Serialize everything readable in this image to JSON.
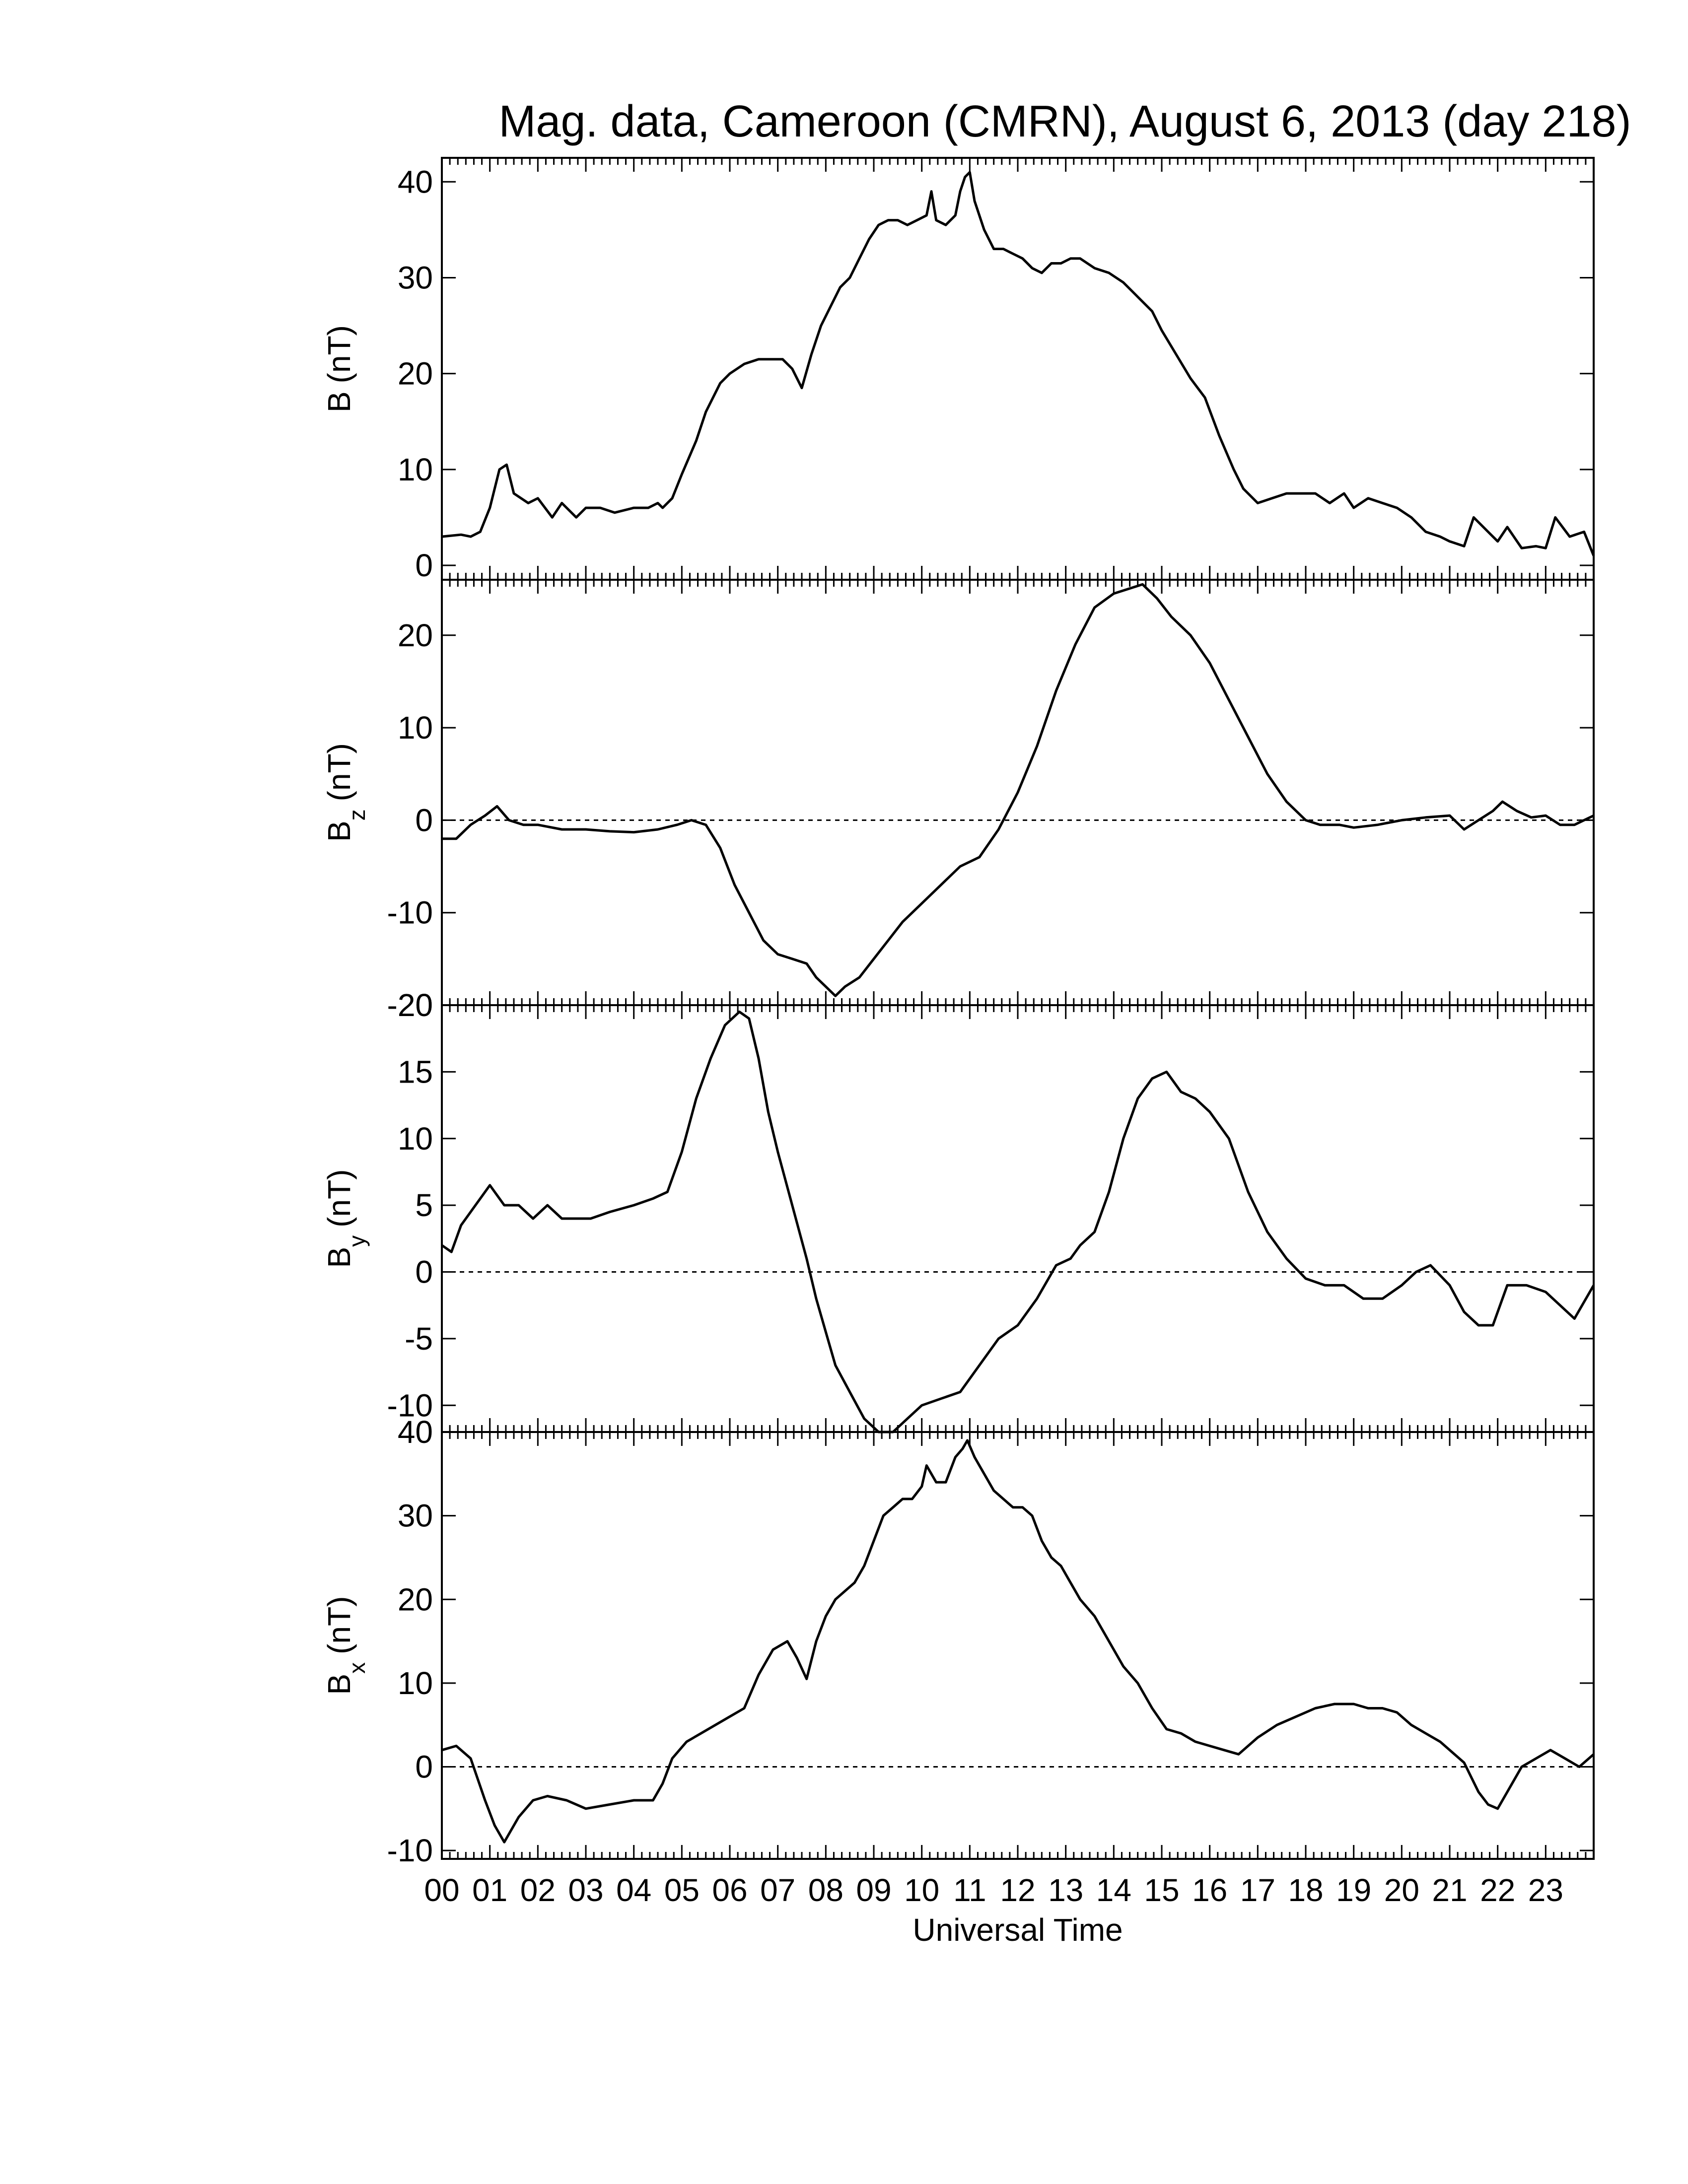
{
  "title": "Mag. data, Cameroon (CMRN), August 6, 2013 (day 218)",
  "xlabel": "Universal Time",
  "x_tick_labels": [
    "00",
    "01",
    "02",
    "03",
    "04",
    "05",
    "06",
    "07",
    "08",
    "09",
    "10",
    "11",
    "12",
    "13",
    "14",
    "15",
    "16",
    "17",
    "18",
    "19",
    "20",
    "21",
    "22",
    "23"
  ],
  "panels": [
    {
      "ylabel_main": "B",
      "ylabel_sub": "",
      "ylabel_unit": "(nT)"
    },
    {
      "ylabel_main": "B",
      "ylabel_sub": "z",
      "ylabel_unit": "(nT)"
    },
    {
      "ylabel_main": "B",
      "ylabel_sub": "y",
      "ylabel_unit": "(nT)"
    },
    {
      "ylabel_main": "B",
      "ylabel_sub": "x",
      "ylabel_unit": "(nT)"
    }
  ],
  "chart_data": {
    "type": "line",
    "title": "Mag. data, Cameroon (CMRN), August 6, 2013 (day 218)",
    "xlabel": "Universal Time",
    "xlim": [
      0,
      24
    ],
    "panels": [
      {
        "ylabel": "B (nT)",
        "ylim": [
          -1.5,
          42.5
        ],
        "yticks": [
          0,
          10,
          20,
          30,
          40
        ],
        "zero_line": false,
        "x": [
          0,
          0.4,
          0.6,
          0.8,
          1.0,
          1.2,
          1.35,
          1.5,
          1.8,
          2.0,
          2.3,
          2.5,
          2.8,
          3.0,
          3.3,
          3.6,
          4.0,
          4.3,
          4.5,
          4.6,
          4.8,
          5.0,
          5.3,
          5.5,
          5.8,
          6.0,
          6.3,
          6.6,
          6.9,
          7.1,
          7.3,
          7.5,
          7.7,
          7.9,
          8.1,
          8.3,
          8.5,
          8.7,
          8.9,
          9.1,
          9.3,
          9.5,
          9.7,
          9.9,
          10.1,
          10.2,
          10.3,
          10.5,
          10.7,
          10.8,
          10.9,
          11.0,
          11.1,
          11.3,
          11.5,
          11.7,
          11.9,
          12.1,
          12.3,
          12.5,
          12.7,
          12.9,
          13.1,
          13.3,
          13.6,
          13.9,
          14.2,
          14.5,
          14.8,
          15.0,
          15.3,
          15.6,
          15.9,
          16.2,
          16.5,
          16.7,
          17.0,
          17.3,
          17.6,
          17.9,
          18.2,
          18.5,
          18.8,
          19.0,
          19.3,
          19.6,
          19.9,
          20.2,
          20.5,
          20.8,
          21.0,
          21.3,
          21.5,
          21.8,
          22.0,
          22.2,
          22.5,
          22.8,
          23.0,
          23.2,
          23.5,
          23.8,
          24.0
        ],
        "y": [
          3,
          3.2,
          3.0,
          3.5,
          6,
          10,
          10.5,
          7.5,
          6.5,
          7,
          5,
          6.5,
          5,
          6,
          6,
          5.5,
          6,
          6,
          6.5,
          6,
          7,
          9.5,
          13,
          16,
          19,
          20,
          21,
          21.5,
          21.5,
          21.5,
          20.5,
          18.5,
          22,
          25,
          27,
          29,
          30,
          32,
          34,
          35.5,
          36,
          36,
          35.5,
          36,
          36.5,
          39,
          36,
          35.5,
          36.5,
          39,
          40.5,
          41,
          38,
          35,
          33,
          33,
          32.5,
          32,
          31,
          30.5,
          31.5,
          31.5,
          32,
          32,
          31,
          30.5,
          29.5,
          28,
          26.5,
          24.5,
          22,
          19.5,
          17.5,
          13.5,
          10,
          8,
          6.5,
          7,
          7.5,
          7.5,
          7.5,
          6.5,
          7.5,
          6,
          7,
          6.5,
          6,
          5,
          3.5,
          3,
          2.5,
          2,
          5,
          3.5,
          2.5,
          4,
          1.8,
          2,
          1.8,
          5,
          3,
          3.5,
          1
        ]
      },
      {
        "ylabel": "Bz (nT)",
        "ylim": [
          -20,
          26
        ],
        "yticks": [
          -20,
          -10,
          0,
          10,
          20
        ],
        "zero_line": true,
        "x": [
          0,
          0.3,
          0.6,
          0.9,
          1.15,
          1.4,
          1.7,
          2.0,
          2.5,
          3.0,
          3.5,
          4.0,
          4.5,
          4.9,
          5.2,
          5.5,
          5.8,
          6.1,
          6.4,
          6.7,
          7.0,
          7.3,
          7.6,
          7.8,
          8.0,
          8.2,
          8.4,
          8.7,
          9.0,
          9.3,
          9.6,
          10.0,
          10.4,
          10.8,
          11.2,
          11.6,
          12.0,
          12.4,
          12.8,
          13.2,
          13.6,
          14.0,
          14.3,
          14.6,
          14.9,
          15.2,
          15.6,
          16.0,
          16.4,
          16.8,
          17.2,
          17.6,
          18.0,
          18.3,
          18.7,
          19.0,
          19.5,
          20.0,
          20.5,
          21.0,
          21.3,
          21.6,
          21.9,
          22.1,
          22.4,
          22.7,
          23.0,
          23.3,
          23.6,
          24.0
        ],
        "y": [
          -2,
          -2,
          -0.5,
          0.5,
          1.5,
          0,
          -0.5,
          -0.5,
          -1,
          -1,
          -1.2,
          -1.3,
          -1,
          -0.5,
          0,
          -0.5,
          -3,
          -7,
          -10,
          -13,
          -14.5,
          -15,
          -15.5,
          -17,
          -18,
          -19,
          -18,
          -17,
          -15,
          -13,
          -11,
          -9,
          -7,
          -5,
          -4,
          -1,
          3,
          8,
          14,
          19,
          23,
          24.5,
          25,
          25.5,
          24,
          22,
          20,
          17,
          13,
          9,
          5,
          2,
          0,
          -0.5,
          -0.5,
          -0.8,
          -0.5,
          0,
          0.3,
          0.5,
          -1,
          0,
          1,
          2,
          1,
          0.3,
          0.5,
          -0.5,
          -0.5,
          0.5
        ]
      },
      {
        "ylabel": "By (nT)",
        "ylim": [
          -12,
          20
        ],
        "yticks": [
          -10,
          -5,
          0,
          5,
          10,
          15,
          20
        ],
        "zero_line": true,
        "x": [
          0,
          0.2,
          0.4,
          0.7,
          1.0,
          1.3,
          1.6,
          1.9,
          2.2,
          2.5,
          2.8,
          3.1,
          3.5,
          4.0,
          4.4,
          4.7,
          5.0,
          5.3,
          5.6,
          5.9,
          6.2,
          6.4,
          6.6,
          6.8,
          7.0,
          7.3,
          7.6,
          7.8,
          8.0,
          8.2,
          8.5,
          8.8,
          9.1,
          9.4,
          9.7,
          10.0,
          10.4,
          10.8,
          11.2,
          11.6,
          12.0,
          12.4,
          12.8,
          13.1,
          13.3,
          13.6,
          13.9,
          14.2,
          14.5,
          14.8,
          15.1,
          15.4,
          15.7,
          16.0,
          16.4,
          16.8,
          17.2,
          17.6,
          18.0,
          18.4,
          18.8,
          19.2,
          19.6,
          20.0,
          20.3,
          20.6,
          21.0,
          21.3,
          21.6,
          21.9,
          22.2,
          22.6,
          23.0,
          23.3,
          23.6,
          24.0
        ],
        "y": [
          2,
          1.5,
          3.5,
          5,
          6.5,
          5,
          5,
          4,
          5,
          4,
          4,
          4,
          4.5,
          5,
          5.5,
          6,
          9,
          13,
          16,
          18.5,
          19.5,
          19,
          16,
          12,
          9,
          5,
          1,
          -2,
          -4.5,
          -7,
          -9,
          -11,
          -12,
          -12,
          -11,
          -10,
          -9.5,
          -9,
          -7,
          -5,
          -4,
          -2,
          0.5,
          1,
          2,
          3,
          6,
          10,
          13,
          14.5,
          15,
          13.5,
          13,
          12,
          10,
          6,
          3,
          1,
          -0.5,
          -1,
          -1,
          -2,
          -2,
          -1,
          0,
          0.5,
          -1,
          -3,
          -4,
          -4,
          -1,
          -1,
          -1.5,
          -2.5,
          -3.5,
          -1
        ]
      },
      {
        "ylabel": "Bx (nT)",
        "ylim": [
          -11,
          40
        ],
        "yticks": [
          -10,
          0,
          10,
          20,
          30,
          40
        ],
        "zero_line": true,
        "x": [
          0,
          0.3,
          0.6,
          0.9,
          1.1,
          1.3,
          1.6,
          1.9,
          2.2,
          2.6,
          3.0,
          3.5,
          4.0,
          4.4,
          4.6,
          4.8,
          5.1,
          5.4,
          5.7,
          6.0,
          6.3,
          6.6,
          6.9,
          7.2,
          7.4,
          7.6,
          7.8,
          8.0,
          8.2,
          8.4,
          8.6,
          8.8,
          9.0,
          9.2,
          9.4,
          9.6,
          9.8,
          10.0,
          10.1,
          10.3,
          10.5,
          10.7,
          10.85,
          10.95,
          11.1,
          11.3,
          11.5,
          11.7,
          11.9,
          12.1,
          12.3,
          12.5,
          12.7,
          12.9,
          13.1,
          13.3,
          13.6,
          13.9,
          14.2,
          14.5,
          14.8,
          15.1,
          15.4,
          15.7,
          16.0,
          16.3,
          16.6,
          17.0,
          17.4,
          17.8,
          18.2,
          18.6,
          19.0,
          19.3,
          19.6,
          19.9,
          20.2,
          20.5,
          20.8,
          21.0,
          21.3,
          21.6,
          21.8,
          22.0,
          22.2,
          22.5,
          22.8,
          23.1,
          23.4,
          23.7,
          24.0
        ],
        "y": [
          2,
          2.5,
          1,
          -4,
          -7,
          -9,
          -6,
          -4,
          -3.5,
          -4,
          -5,
          -4.5,
          -4,
          -4,
          -2,
          1,
          3,
          4,
          5,
          6,
          7,
          11,
          14,
          15,
          13,
          10.5,
          15,
          18,
          20,
          21,
          22,
          24,
          27,
          30,
          31,
          32,
          32,
          33.5,
          36,
          34,
          34,
          37,
          38,
          39,
          37,
          35,
          33,
          32,
          31,
          31,
          30,
          27,
          25,
          24,
          22,
          20,
          18,
          15,
          12,
          10,
          7,
          4.5,
          4,
          3,
          2.5,
          2,
          1.5,
          3.5,
          5,
          6,
          7,
          7.5,
          7.5,
          7,
          7,
          6.5,
          5,
          4,
          3,
          2,
          0.5,
          -3,
          -4.5,
          -5,
          -3,
          0,
          1,
          2,
          1,
          0,
          1.5
        ]
      }
    ]
  }
}
